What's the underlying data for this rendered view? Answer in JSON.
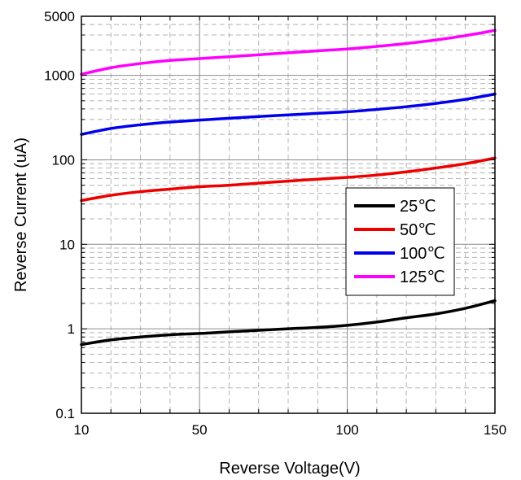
{
  "chart_data": {
    "type": "line",
    "xlabel": "Reverse Voltage(V)",
    "ylabel": "Reverse Current (uA)",
    "xlim": [
      10,
      150
    ],
    "ylim": [
      0.1,
      5000
    ],
    "yscale": "log",
    "grid": true,
    "legend_position": "center-right",
    "x_ticks": [
      10,
      50,
      100,
      150
    ],
    "x_tick_labels": [
      "10",
      "50",
      "100",
      "150"
    ],
    "y_ticks": [
      0.1,
      1,
      10,
      100,
      1000,
      5000
    ],
    "y_tick_labels": [
      "0.1",
      "1",
      "10",
      "100",
      "1000",
      "5000"
    ],
    "series": [
      {
        "name": "25℃",
        "color": "#000000",
        "x": [
          10,
          20,
          30,
          40,
          50,
          60,
          70,
          80,
          90,
          100,
          110,
          120,
          130,
          140,
          150
        ],
        "y": [
          0.65,
          0.74,
          0.8,
          0.85,
          0.88,
          0.92,
          0.96,
          1.0,
          1.04,
          1.1,
          1.2,
          1.35,
          1.5,
          1.75,
          2.15
        ]
      },
      {
        "name": "50℃",
        "color": "#ee0000",
        "x": [
          10,
          20,
          30,
          40,
          50,
          60,
          70,
          80,
          90,
          100,
          110,
          120,
          130,
          140,
          150
        ],
        "y": [
          33,
          38,
          42,
          45,
          48,
          50,
          53,
          56,
          59,
          62,
          66,
          72,
          80,
          90,
          105
        ]
      },
      {
        "name": "100℃",
        "color": "#0000ee",
        "x": [
          10,
          20,
          30,
          40,
          50,
          60,
          70,
          80,
          90,
          100,
          110,
          120,
          130,
          140,
          150
        ],
        "y": [
          200,
          235,
          260,
          280,
          295,
          310,
          325,
          340,
          355,
          370,
          395,
          425,
          465,
          520,
          600
        ]
      },
      {
        "name": "125℃",
        "color": "#ff00ff",
        "x": [
          10,
          20,
          30,
          40,
          50,
          60,
          70,
          80,
          90,
          100,
          110,
          120,
          130,
          140,
          150
        ],
        "y": [
          1030,
          1230,
          1380,
          1500,
          1580,
          1660,
          1750,
          1850,
          1950,
          2050,
          2200,
          2380,
          2620,
          2950,
          3400
        ]
      }
    ]
  }
}
